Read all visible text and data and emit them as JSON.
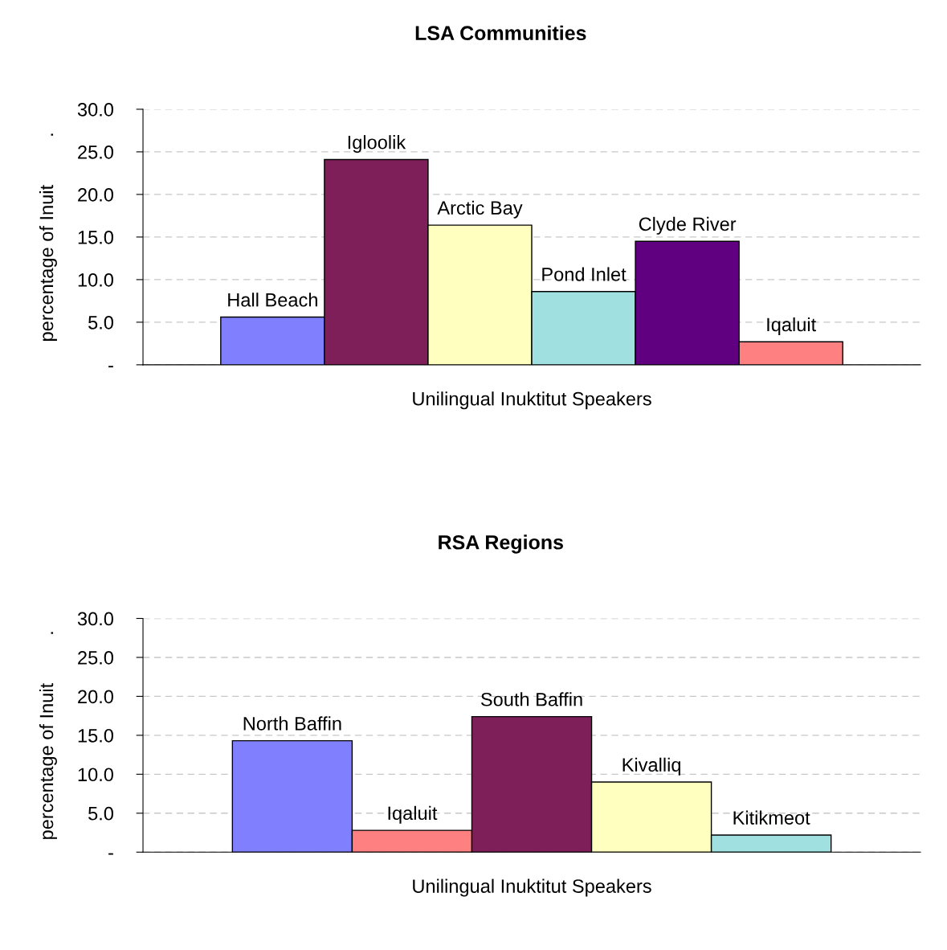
{
  "chart_data": [
    {
      "type": "bar",
      "title": "LSA Communities",
      "ylabel": "percentage of Inuit         .",
      "categories": [
        "Unilingual Inuktitut Speakers"
      ],
      "series": [
        {
          "name": "Hall Beach",
          "color": "#8080ff",
          "values": [
            5.6
          ]
        },
        {
          "name": "Igloolik",
          "color": "#7f1f5a",
          "values": [
            24.1
          ]
        },
        {
          "name": "Arctic Bay",
          "color": "#ffffc0",
          "values": [
            16.4
          ]
        },
        {
          "name": "Pond Inlet",
          "color": "#a0e0e0",
          "values": [
            8.6
          ]
        },
        {
          "name": "Clyde River",
          "color": "#600080",
          "values": [
            14.5
          ]
        },
        {
          "name": "Iqaluit",
          "color": "#ff8080",
          "values": [
            2.7
          ]
        }
      ],
      "ylim": [
        0,
        30
      ],
      "yticks": [
        {
          "value": 0,
          "label": "-"
        },
        {
          "value": 5,
          "label": "5.0"
        },
        {
          "value": 10,
          "label": "10.0"
        },
        {
          "value": 15,
          "label": "15.0"
        },
        {
          "value": 20,
          "label": "20.0"
        },
        {
          "value": 25,
          "label": "25.0"
        },
        {
          "value": 30,
          "label": "30.0"
        }
      ],
      "grid": "y",
      "legend": false
    },
    {
      "type": "bar",
      "title": "RSA Regions",
      "ylabel": "percentage of Inuit         .",
      "categories": [
        "Unilingual Inuktitut Speakers"
      ],
      "series": [
        {
          "name": "North Baffin",
          "color": "#8080ff",
          "values": [
            14.3
          ]
        },
        {
          "name": "Iqaluit",
          "color": "#ff8080",
          "values": [
            2.8
          ]
        },
        {
          "name": "South Baffin",
          "color": "#7f1f5a",
          "values": [
            17.4
          ]
        },
        {
          "name": "Kivalliq",
          "color": "#ffffc0",
          "values": [
            9.0
          ]
        },
        {
          "name": "Kitikmeot",
          "color": "#a0e0e0",
          "values": [
            2.2
          ]
        }
      ],
      "ylim": [
        0,
        30
      ],
      "yticks": [
        {
          "value": 0,
          "label": "-"
        },
        {
          "value": 5,
          "label": "5.0"
        },
        {
          "value": 10,
          "label": "10.0"
        },
        {
          "value": 15,
          "label": "15.0"
        },
        {
          "value": 20,
          "label": "20.0"
        },
        {
          "value": 25,
          "label": "25.0"
        },
        {
          "value": 30,
          "label": "30.0"
        }
      ],
      "grid": "y",
      "legend": false
    }
  ]
}
